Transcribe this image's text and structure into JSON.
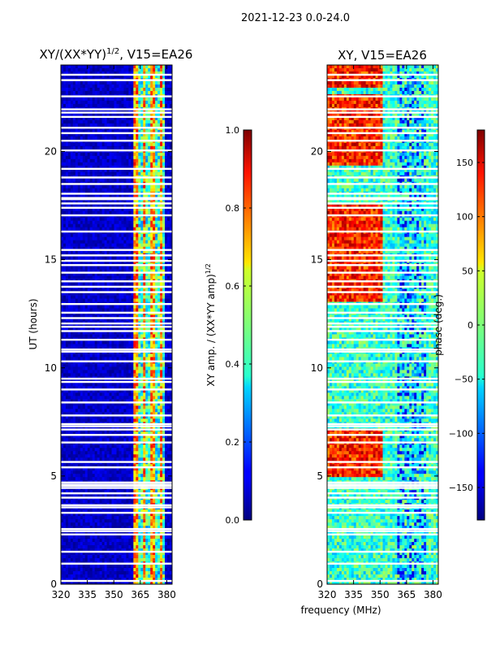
{
  "suptitle": "2021-12-23 0.0-24.0",
  "shared_xlabel": "frequency (MHz)",
  "colors": {
    "background": "#ffffff",
    "axis": "#000000"
  },
  "chart_data": [
    {
      "type": "heatmap",
      "id": "amp",
      "title_main": "XY/(XX*YY)",
      "title_sup": "1/2",
      "title_tail": ", V15=EA26",
      "ylabel": "UT (hours)",
      "xlim": [
        320,
        383
      ],
      "ylim": [
        0,
        24
      ],
      "xticks": [
        320,
        335,
        350,
        365,
        380
      ],
      "yticks": [
        0,
        5,
        10,
        15,
        20
      ],
      "colorscale": "jet",
      "color_range": [
        0.0,
        1.0
      ],
      "colorbar_label_main": "XY amp. / (XX*YY amp)",
      "colorbar_label_sup": "1/2",
      "colorbar_ticks": [
        "0.0",
        "0.2",
        "0.4",
        "0.6",
        "0.8",
        "1.0"
      ],
      "colorbar_tick_values": [
        0.0,
        0.2,
        0.4,
        0.6,
        0.8,
        1.0
      ],
      "notes": "Low amplitude (~0.0-0.1) below ~360 MHz; bright vertical stripes (0.4-0.8) between ~361-378 MHz; white horizontal gaps of missing data"
    },
    {
      "type": "heatmap",
      "id": "phase",
      "title": "XY, V15=EA26",
      "ylabel": "phase (deg.)",
      "xlim": [
        320,
        383
      ],
      "ylim": [
        0,
        24
      ],
      "xticks": [
        320,
        335,
        350,
        365,
        380
      ],
      "yticks": [
        0,
        5,
        10,
        15,
        20
      ],
      "colorscale": "jet",
      "color_range": [
        -180,
        180
      ],
      "colorbar_ticks": [
        "−150",
        "−100",
        "−50",
        "0",
        "50",
        "100",
        "150"
      ],
      "colorbar_tick_values": [
        -150,
        -100,
        -50,
        0,
        50,
        100,
        150
      ],
      "notes": "Phase mostly near 0 to -60 deg with red/orange (100-180 deg) bands around 5-7 h, 13-17.5 h and 19.5-22.5 h at low frequencies; blue/dark structures near 360-375 MHz"
    }
  ],
  "gap_rows_hours": [
    0.15,
    0.95,
    1.5,
    2.3,
    2.45,
    2.55,
    3.3,
    3.55,
    3.65,
    4.0,
    4.2,
    4.45,
    4.55,
    4.6,
    4.7,
    5.4,
    5.65,
    6.55,
    6.9,
    7.15,
    7.3,
    7.4,
    7.8,
    8.4,
    9.0,
    9.35,
    9.5,
    10.3,
    10.75,
    10.85,
    11.3,
    11.7,
    11.9,
    12.05,
    12.3,
    12.55,
    12.95,
    13.5,
    13.75,
    14.0,
    14.4,
    14.75,
    14.95,
    15.2,
    15.45,
    16.3,
    17.05,
    17.4,
    17.6,
    17.8,
    17.85,
    18.05,
    18.5,
    18.8,
    19.2,
    20.05,
    20.5,
    20.85,
    21.1,
    21.6,
    21.8,
    21.95,
    22.55,
    23.3,
    23.55
  ]
}
